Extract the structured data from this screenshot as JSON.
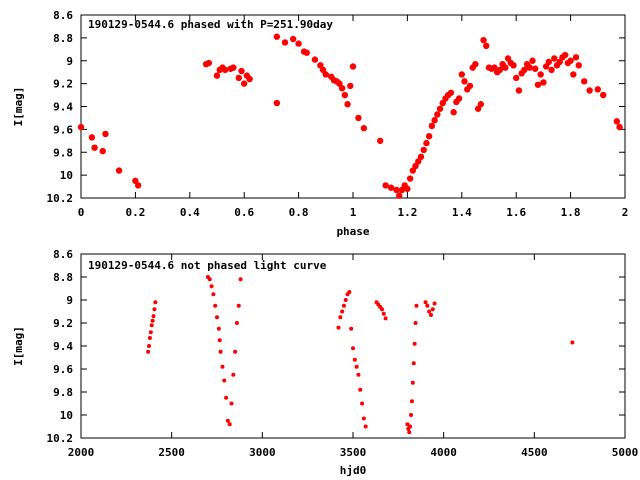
{
  "chart_data": [
    {
      "type": "scatter",
      "title": "190129-0544.6 phased with P=251.90day",
      "xlabel": "phase",
      "ylabel": "I[mag]",
      "xlim": [
        0,
        2
      ],
      "ylim": [
        8.6,
        10.2
      ],
      "y_inverted": true,
      "grid": false,
      "legend": "none",
      "marker_color": "#ff0000",
      "x_ticks": [
        0,
        0.2,
        0.4,
        0.6,
        0.8,
        1,
        1.2,
        1.4,
        1.6,
        1.8,
        2
      ],
      "x_tick_labels": [
        "0",
        "0.2",
        "0.4",
        "0.6",
        "0.8",
        "1",
        "1.2",
        "1.4",
        "1.6",
        "1.8",
        "2"
      ],
      "y_ticks": [
        8.6,
        8.8,
        9,
        9.2,
        9.4,
        9.6,
        9.8,
        10,
        10.2
      ],
      "y_tick_labels": [
        "8.6",
        "8.8",
        "9",
        "9.2",
        "9.4",
        "9.6",
        "9.8",
        "10",
        "10.2"
      ],
      "x": [
        0.0,
        0.04,
        0.05,
        0.08,
        0.09,
        0.14,
        0.2,
        0.21,
        0.46,
        0.47,
        0.5,
        0.51,
        0.52,
        0.53,
        0.55,
        0.56,
        0.58,
        0.59,
        0.6,
        0.61,
        0.62,
        0.72,
        0.72,
        0.75,
        0.78,
        0.8,
        0.82,
        0.83,
        0.86,
        0.88,
        0.89,
        0.9,
        0.92,
        0.93,
        0.94,
        0.95,
        0.96,
        0.97,
        0.98,
        0.99,
        1.0,
        1.02,
        1.04,
        1.1,
        1.12,
        1.14,
        1.16,
        1.17,
        1.18,
        1.19,
        1.2,
        1.21,
        1.22,
        1.23,
        1.24,
        1.25,
        1.26,
        1.27,
        1.28,
        1.29,
        1.3,
        1.31,
        1.32,
        1.33,
        1.34,
        1.35,
        1.36,
        1.37,
        1.38,
        1.39,
        1.4,
        1.41,
        1.42,
        1.43,
        1.44,
        1.45,
        1.46,
        1.47,
        1.48,
        1.49,
        1.5,
        1.51,
        1.52,
        1.53,
        1.54,
        1.55,
        1.56,
        1.57,
        1.58,
        1.59,
        1.6,
        1.61,
        1.62,
        1.63,
        1.64,
        1.65,
        1.66,
        1.67,
        1.68,
        1.69,
        1.7,
        1.71,
        1.72,
        1.73,
        1.74,
        1.75,
        1.76,
        1.77,
        1.78,
        1.79,
        1.8,
        1.81,
        1.82,
        1.83,
        1.85,
        1.87,
        1.9,
        1.92,
        1.97,
        1.98
      ],
      "y": [
        9.58,
        9.67,
        9.76,
        9.79,
        9.64,
        9.96,
        10.05,
        10.09,
        9.03,
        9.02,
        9.13,
        9.08,
        9.06,
        9.08,
        9.07,
        9.06,
        9.15,
        9.09,
        9.2,
        9.13,
        9.16,
        9.37,
        8.79,
        8.84,
        8.81,
        8.85,
        8.92,
        8.93,
        8.99,
        9.04,
        9.08,
        9.12,
        9.14,
        9.17,
        9.18,
        9.2,
        9.24,
        9.3,
        9.38,
        9.22,
        9.05,
        9.5,
        9.59,
        9.7,
        10.09,
        10.11,
        10.13,
        10.18,
        10.13,
        10.09,
        10.12,
        10.03,
        9.96,
        9.92,
        9.88,
        9.84,
        9.78,
        9.72,
        9.66,
        9.57,
        9.52,
        9.47,
        9.42,
        9.37,
        9.33,
        9.3,
        9.28,
        9.45,
        9.36,
        9.33,
        9.12,
        9.18,
        9.25,
        9.22,
        9.06,
        9.03,
        9.42,
        9.38,
        8.82,
        8.87,
        9.06,
        9.07,
        9.06,
        9.1,
        9.08,
        9.03,
        9.06,
        8.98,
        9.02,
        9.04,
        9.15,
        9.26,
        9.11,
        9.08,
        9.03,
        9.06,
        9.0,
        9.07,
        9.21,
        9.12,
        9.19,
        9.05,
        9.01,
        9.08,
        8.98,
        9.04,
        9.01,
        8.97,
        8.95,
        9.02,
        9.0,
        9.12,
        8.97,
        9.04,
        9.18,
        9.26,
        9.25,
        9.3,
        9.53,
        9.58
      ]
    },
    {
      "type": "scatter",
      "title": "190129-0544.6 not phased light curve",
      "xlabel": "hjd0",
      "ylabel": "I[mag]",
      "xlim": [
        2000,
        5000
      ],
      "ylim": [
        8.6,
        10.2
      ],
      "y_inverted": true,
      "grid": false,
      "legend": "none",
      "marker_color": "#ff0000",
      "x_ticks": [
        2000,
        2500,
        3000,
        3500,
        4000,
        4500,
        5000
      ],
      "x_tick_labels": [
        "2000",
        "2500",
        "3000",
        "3500",
        "4000",
        "4500",
        "5000"
      ],
      "y_ticks": [
        8.6,
        8.8,
        9,
        9.2,
        9.4,
        9.6,
        9.8,
        10,
        10.2
      ],
      "y_tick_labels": [
        "8.6",
        "8.8",
        "9",
        "9.2",
        "9.4",
        "9.6",
        "9.8",
        "10",
        "10.2"
      ],
      "x": [
        2370,
        2375,
        2380,
        2385,
        2390,
        2395,
        2400,
        2405,
        2410,
        2700,
        2710,
        2720,
        2730,
        2740,
        2750,
        2760,
        2765,
        2770,
        2780,
        2790,
        2800,
        2810,
        2820,
        2830,
        2840,
        2850,
        2860,
        2870,
        2880,
        3420,
        3430,
        3440,
        3450,
        3460,
        3470,
        3480,
        3490,
        3500,
        3510,
        3520,
        3530,
        3540,
        3550,
        3560,
        3570,
        3630,
        3640,
        3650,
        3660,
        3670,
        3680,
        3800,
        3805,
        3810,
        3815,
        3820,
        3825,
        3830,
        3835,
        3840,
        3845,
        3850,
        3900,
        3910,
        3920,
        3930,
        3940,
        3950,
        4710
      ],
      "y": [
        9.45,
        9.4,
        9.33,
        9.28,
        9.22,
        9.18,
        9.14,
        9.08,
        9.02,
        8.8,
        8.82,
        8.88,
        8.95,
        9.05,
        9.15,
        9.25,
        9.35,
        9.45,
        9.58,
        9.7,
        9.85,
        10.05,
        10.08,
        9.9,
        9.65,
        9.45,
        9.2,
        9.05,
        8.82,
        9.24,
        9.15,
        9.1,
        9.05,
        9.0,
        8.95,
        8.93,
        9.25,
        9.42,
        9.52,
        9.58,
        9.65,
        9.78,
        9.9,
        10.03,
        10.1,
        9.02,
        9.04,
        9.06,
        9.08,
        9.12,
        9.16,
        10.08,
        10.12,
        10.15,
        10.1,
        10.0,
        9.88,
        9.72,
        9.55,
        9.38,
        9.2,
        9.05,
        9.02,
        9.05,
        9.1,
        9.13,
        9.08,
        9.03,
        9.37
      ]
    }
  ]
}
